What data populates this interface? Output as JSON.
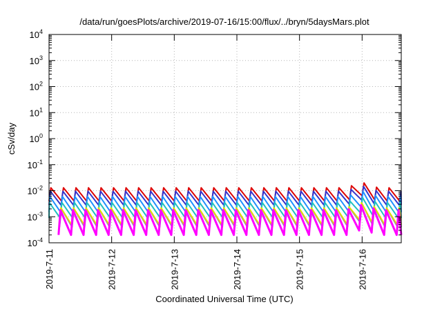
{
  "chart_data": {
    "type": "line",
    "title": "/data/run/goesPlots/archive/2019-07-16/15:00/flux/../bryn/5daysMars.plot",
    "xlabel": "Coordinated Universal Time (UTC)",
    "ylabel": "cSv/day",
    "yscale": "log",
    "ylim": [
      0.0001,
      10000
    ],
    "y_ticks": [
      {
        "value": 0.0001,
        "mant": "10",
        "exp": "-4"
      },
      {
        "value": 0.001,
        "mant": "10",
        "exp": "-3"
      },
      {
        "value": 0.01,
        "mant": "10",
        "exp": "-2"
      },
      {
        "value": 0.1,
        "mant": "10",
        "exp": "-1"
      },
      {
        "value": 1,
        "mant": "10",
        "exp": "0"
      },
      {
        "value": 10,
        "mant": "10",
        "exp": "1"
      },
      {
        "value": 100,
        "mant": "10",
        "exp": "2"
      },
      {
        "value": 1000,
        "mant": "10",
        "exp": "3"
      },
      {
        "value": 10000,
        "mant": "10",
        "exp": "4"
      }
    ],
    "xlim": [
      "2019-07-11T00:00",
      "2019-07-16T15:00"
    ],
    "x_ticks": [
      {
        "value": "2019-07-11T00:00",
        "label": "2019-7-11"
      },
      {
        "value": "2019-07-12T00:00",
        "label": "2019-7-12"
      },
      {
        "value": "2019-07-13T00:00",
        "label": "2019-7-13"
      },
      {
        "value": "2019-07-14T00:00",
        "label": "2019-7-14"
      },
      {
        "value": "2019-07-15T00:00",
        "label": "2019-7-15"
      },
      {
        "value": "2019-07-16T00:00",
        "label": "2019-7-16"
      }
    ],
    "grid": true,
    "sawtooth_period_hours": 4.8,
    "bump_window": [
      "2019-07-15T18:00",
      "2019-07-16T06:00"
    ],
    "series": [
      {
        "color": "#dd0000",
        "peak": 0.013,
        "trough": 0.004
      },
      {
        "color": "#3333cc",
        "peak": 0.0095,
        "trough": 0.0028
      },
      {
        "color": "#1e90ff",
        "peak": 0.006,
        "trough": 0.0015
      },
      {
        "color": "#20c0c0",
        "peak": 0.0035,
        "trough": 0.0009
      },
      {
        "color": "#8e7cc3",
        "peak": 0.002,
        "trough": 0.0004
      },
      {
        "color": "#e0e000",
        "peak": 0.0022,
        "trough": 0.0005
      },
      {
        "color": "#ff00ff",
        "peak": 0.0018,
        "trough": 0.0002
      }
    ]
  }
}
